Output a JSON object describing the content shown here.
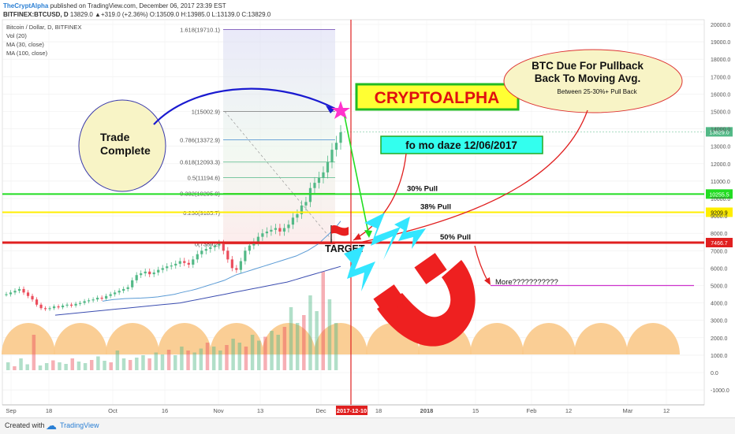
{
  "header": {
    "author": "TheCryptAlpha",
    "published": "published on TradingView.com, December 06, 2017 23:39 EST",
    "symbol": "BITFINEX:BTCUSD, D",
    "ohlc": "13829.0 ▲+319.0 (+2.36%) O:13509.0 H:13985.0 L:13139.0 C:13829.0",
    "legend_title": "Bitcoin / Dollar, D, BITFINEX",
    "indicators": [
      "Vol (20)",
      "MA (30, close)",
      "MA (100, close)"
    ]
  },
  "footer": {
    "created_with": "Created with",
    "brand": "TradingView"
  },
  "colors": {
    "up": "#53b987",
    "down": "#eb4d5c",
    "ma30": "#5b9bd5",
    "ma100": "#3b4db0",
    "green_line": "#22dd22",
    "yellow_line": "#ffee00",
    "red_line": "#e02020",
    "magenta": "#cc33cc"
  },
  "chart_data": {
    "type": "line",
    "title": "Bitcoin / Dollar, D, BITFINEX",
    "y_axis_ticks": [
      -1000,
      0,
      1000,
      2000,
      3000,
      4000,
      5000,
      6000,
      7000,
      8000,
      9000,
      10000,
      11000,
      12000,
      13000,
      14000,
      15000,
      16000,
      17000,
      18000,
      19000,
      20000
    ],
    "x_axis_ticks": [
      "Sep",
      "18",
      "Oct",
      "16",
      "Nov",
      "13",
      "Dec",
      "18",
      "2018",
      "15",
      "Feb",
      "12",
      "Mar",
      "12"
    ],
    "current_date_label": "2017-12-10",
    "price_series_y": [
      4500,
      4600,
      4700,
      4800,
      4600,
      4400,
      4200,
      3900,
      3700,
      3650,
      3700,
      3800,
      3750,
      3850,
      3900,
      3850,
      3950,
      4000,
      4100,
      4150,
      4200,
      4300,
      4250,
      4400,
      4500,
      4600,
      4700,
      4800,
      4900,
      5300,
      5600,
      5700,
      5800,
      5650,
      5750,
      5900,
      6000,
      6100,
      6150,
      6250,
      6400,
      6300,
      6200,
      6500,
      6800,
      7000,
      7100,
      7200,
      7300,
      7400,
      7000,
      6500,
      6000,
      5900,
      6400,
      7000,
      7300,
      7500,
      7800,
      8000,
      8100,
      8200,
      8300,
      8100,
      8300,
      8500,
      8900,
      9100,
      9600,
      9800,
      10600,
      10900,
      11200,
      11500,
      12100,
      12800,
      13200,
      13800
    ],
    "ma30_y": [
      4100,
      4150,
      4200,
      4220,
      4250,
      4260,
      4270,
      4280,
      4300,
      4320,
      4350,
      4400,
      4450,
      4500,
      4580,
      4650,
      4720,
      4800,
      4900,
      5000,
      5100,
      5200,
      5300,
      5450,
      5600,
      5700,
      5800,
      5900,
      6000,
      6100,
      6200,
      6300,
      6400,
      6500,
      6600,
      6700,
      6850,
      7000,
      7200,
      7400,
      7700,
      8000,
      8300,
      8700
    ],
    "ma100_y": [
      3300,
      3350,
      3400,
      3450,
      3500,
      3550,
      3600,
      3650,
      3700,
      3750,
      3800,
      3850,
      3900,
      3950,
      4000,
      4100,
      4200,
      4300,
      4400,
      4500,
      4600,
      4700,
      4800,
      4900,
      5000,
      5100,
      5200,
      5350,
      5500,
      5650,
      5800,
      5950,
      6100
    ],
    "volume_y": [
      200,
      100,
      300,
      150,
      900,
      120,
      180,
      250,
      200,
      160,
      300,
      220,
      180,
      260,
      350,
      240,
      200,
      500,
      300,
      260,
      320,
      380,
      300,
      450,
      400,
      520,
      380,
      600,
      500,
      450,
      550,
      700,
      600,
      500,
      640,
      800,
      700,
      600,
      900,
      750,
      850,
      1000,
      900,
      1100,
      1600,
      1200,
      1400,
      1900,
      1500,
      2500,
      1800,
      1200
    ],
    "fibonacci": [
      {
        "label": "1.618(19710.1)",
        "value": 19710.1
      },
      {
        "label": "1(15002.9)",
        "value": 15002.9
      },
      {
        "label": "0.786(13372.9)",
        "value": 13372.9
      },
      {
        "label": "0.618(12093.3)",
        "value": 12093.3
      },
      {
        "label": "0.5(11194.6)",
        "value": 11194.6
      },
      {
        "label": "0.382(10295.9)",
        "value": 10295.9
      },
      {
        "label": "0.236(9185.7)",
        "value": 9185.7
      },
      {
        "label": "0(7389.2)",
        "value": 7389.2
      }
    ],
    "horizontal_levels": [
      {
        "label": "30% Pull",
        "value": 10255.5,
        "axis_label": "10255.5",
        "color": "#22dd22"
      },
      {
        "label": "38% Pull",
        "value": 9209.9,
        "axis_label": "9209.9",
        "color": "#ffee00"
      },
      {
        "label": "50% Pull",
        "value": 7466.7,
        "axis_label": "7466.7",
        "color": "#e02020"
      }
    ],
    "last_price_label": "13829.0",
    "last_price": 13829.0,
    "more_level": 5000,
    "annotations": {
      "trade_complete": "Trade\nComplete",
      "brand": "CRYPTOALPHA",
      "date_box": "fo mo daze 12/06/2017",
      "pullback_title": "BTC Due For Pullback\nBack To Moving Avg.",
      "pullback_sub": "Between 25-30%+ Pull Back",
      "target": "TARGET",
      "more": "More???????????"
    }
  }
}
